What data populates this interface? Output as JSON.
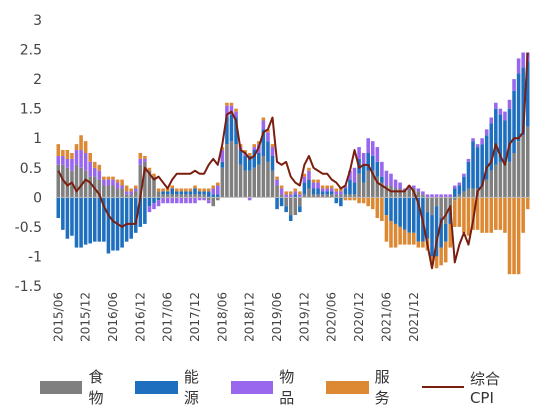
{
  "chart_data": {
    "type": "bar",
    "stacked": true,
    "ylim": [
      -1.5,
      3
    ],
    "yticks": [
      3,
      2.5,
      2,
      1.5,
      1,
      0.5,
      0,
      -0.5,
      -1,
      -1.5
    ],
    "xtick_labels": [
      "2015/06",
      "2015/12",
      "2016/06",
      "2016/12",
      "2017/06",
      "2017/12",
      "2018/06",
      "2018/12",
      "2019/06",
      "2019/12",
      "2020/06",
      "2020/12",
      "2021/06",
      "2021/12"
    ],
    "xtick_start_index": 0,
    "xtick_step": 6,
    "x_start": "2015/06",
    "x_frequency": "monthly",
    "series": [
      {
        "name": "食物",
        "color": "#7f7f7f",
        "values": [
          0.55,
          0.55,
          0.5,
          0.45,
          0.55,
          0.5,
          0.45,
          0.35,
          0.35,
          0.3,
          0.2,
          0.2,
          0.2,
          0.15,
          0.15,
          0.05,
          0.05,
          0.1,
          0.55,
          0.6,
          0.45,
          0.35,
          0.1,
          0.05,
          0.05,
          0.05,
          0.05,
          0.05,
          0.05,
          0.05,
          0.05,
          0.05,
          0.05,
          -0.05,
          -0.15,
          -0.05,
          0.5,
          0.9,
          0.95,
          0.9,
          0.55,
          0.45,
          0.45,
          0.5,
          0.55,
          0.7,
          0.6,
          0.45,
          0.2,
          0.05,
          -0.15,
          -0.3,
          -0.3,
          -0.15,
          0.05,
          0.15,
          0.05,
          0.05,
          0.05,
          0.05,
          0.05,
          0.05,
          0.05,
          0.05,
          0.05,
          0.05,
          0.4,
          0.25,
          0.45,
          0.45,
          0.35,
          0.25,
          0.2,
          0.2,
          0.15,
          0.15,
          0.1,
          0.15,
          0.15,
          0.1,
          0.05,
          -0.25,
          -0.3,
          -0.15,
          -0.35,
          -0.45,
          -0.25,
          -0.05,
          0.05,
          0.1,
          0.15,
          0.15,
          0.15,
          0.2,
          0.3,
          0.45,
          0.55,
          0.6,
          0.55,
          0.6,
          0.75,
          0.95,
          1.05,
          1.2
        ]
      },
      {
        "name": "能源",
        "color": "#1f6fbf",
        "values": [
          -0.35,
          -0.55,
          -0.7,
          -0.65,
          -0.85,
          -0.85,
          -0.8,
          -0.78,
          -0.75,
          -0.75,
          -0.75,
          -0.95,
          -0.9,
          -0.9,
          -0.85,
          -0.75,
          -0.7,
          -0.6,
          -0.5,
          -0.45,
          -0.15,
          -0.1,
          -0.05,
          0.05,
          0.05,
          0.1,
          0.05,
          0.05,
          0.05,
          0.05,
          0.1,
          0.05,
          0.05,
          0.1,
          0.05,
          0.05,
          0.1,
          0.45,
          0.45,
          0.45,
          0.25,
          0.25,
          0.25,
          0.3,
          0.2,
          0.45,
          0.35,
          0.25,
          -0.2,
          -0.15,
          -0.1,
          -0.1,
          0.05,
          -0.1,
          0.2,
          0.15,
          0.1,
          0.1,
          0.05,
          0.05,
          0.05,
          -0.1,
          -0.15,
          0.1,
          0.25,
          0.2,
          0.25,
          0.3,
          0.3,
          0.25,
          0.25,
          0.1,
          -0.3,
          -0.4,
          -0.45,
          -0.5,
          -0.55,
          -0.6,
          -0.6,
          -0.75,
          -0.75,
          -0.45,
          -0.7,
          -0.85,
          -0.5,
          -0.3,
          -0.2,
          0.15,
          0.15,
          0.25,
          0.45,
          0.8,
          0.7,
          0.7,
          0.75,
          0.8,
          0.95,
          0.8,
          0.75,
          0.9,
          1.05,
          1.15,
          1.15,
          1.1
        ]
      },
      {
        "name": "物品",
        "color": "#9966ee",
        "values": [
          0.15,
          0.15,
          0.15,
          0.2,
          0.25,
          0.3,
          0.3,
          0.25,
          0.15,
          0.15,
          0.1,
          0.1,
          0.1,
          0.1,
          0.05,
          0.05,
          0.05,
          0.05,
          0.1,
          0.05,
          -0.1,
          -0.1,
          -0.1,
          -0.1,
          -0.1,
          -0.1,
          -0.1,
          -0.1,
          -0.1,
          -0.1,
          -0.1,
          -0.05,
          -0.05,
          -0.05,
          0.1,
          0.15,
          0.2,
          0.2,
          0.15,
          0.1,
          0.05,
          0.05,
          -0.05,
          0.05,
          0.15,
          0.15,
          0.15,
          0.15,
          0.1,
          0.1,
          0.05,
          0.05,
          0.05,
          0.05,
          0.1,
          0.15,
          0.1,
          0.1,
          0.05,
          0.05,
          0.05,
          0.05,
          0.05,
          0.05,
          0.15,
          0.25,
          0.2,
          0.2,
          0.25,
          0.25,
          0.25,
          0.25,
          0.25,
          0.2,
          0.15,
          0.1,
          0.05,
          0.05,
          0.05,
          0.05,
          0.05,
          0.05,
          0.05,
          0.05,
          0.05,
          0.05,
          0.05,
          0.05,
          0.05,
          0.05,
          0.05,
          0.05,
          0.05,
          0.1,
          0.1,
          0.1,
          0.1,
          0.1,
          0.15,
          0.15,
          0.2,
          0.25,
          0.25,
          0.15
        ]
      },
      {
        "name": "服务",
        "color": "#dd8833",
        "values": [
          0.2,
          0.1,
          0.15,
          0.1,
          0.1,
          0.25,
          0.2,
          0.15,
          0.1,
          0.1,
          0.05,
          0.05,
          0.05,
          0.05,
          0.1,
          0.1,
          0.05,
          0.05,
          0.1,
          0.05,
          0.05,
          0.05,
          0.05,
          0.05,
          0.05,
          0.05,
          0.05,
          0.05,
          0.05,
          0.05,
          0.05,
          0.05,
          0.05,
          0.05,
          0.05,
          0.05,
          0.05,
          0.05,
          0.05,
          0.05,
          0.05,
          0.05,
          0.05,
          0.05,
          0.05,
          0.05,
          0.05,
          0.05,
          0.05,
          0.05,
          0.05,
          0.05,
          0.05,
          0.05,
          0.05,
          0.05,
          0.05,
          0.05,
          0.05,
          0.05,
          0.05,
          0.05,
          0.05,
          -0.05,
          -0.05,
          -0.05,
          -0.1,
          -0.1,
          -0.15,
          -0.2,
          -0.35,
          -0.4,
          -0.45,
          -0.45,
          -0.4,
          -0.3,
          -0.25,
          -0.2,
          -0.2,
          -0.1,
          -0.1,
          -0.2,
          -0.15,
          -0.2,
          -0.3,
          -0.35,
          -0.4,
          -0.45,
          -0.5,
          -0.6,
          -0.65,
          -0.55,
          -0.55,
          -0.6,
          -0.6,
          -0.6,
          -0.55,
          -0.55,
          -0.6,
          -1.3,
          -1.3,
          -1.3,
          -0.6,
          -0.2
        ]
      }
    ],
    "line_series": {
      "name": "综合CPI",
      "color": "#7a1f10",
      "values": [
        0.45,
        0.3,
        0.2,
        0.25,
        0.1,
        0.2,
        0.3,
        0.25,
        0.15,
        0.05,
        -0.15,
        -0.3,
        -0.4,
        -0.45,
        -0.5,
        -0.45,
        -0.45,
        -0.45,
        0.0,
        0.5,
        0.4,
        0.3,
        0.35,
        0.25,
        0.15,
        0.3,
        0.4,
        0.4,
        0.4,
        0.4,
        0.45,
        0.4,
        0.4,
        0.55,
        0.65,
        0.55,
        0.9,
        1.4,
        1.45,
        1.3,
        0.8,
        0.75,
        0.65,
        0.7,
        0.85,
        1.1,
        1.15,
        1.35,
        0.6,
        0.55,
        0.6,
        0.35,
        0.25,
        0.2,
        0.55,
        0.7,
        0.5,
        0.45,
        0.4,
        0.4,
        0.3,
        0.25,
        0.15,
        0.2,
        0.45,
        0.8,
        0.5,
        0.55,
        0.55,
        0.4,
        0.25,
        0.2,
        0.15,
        0.1,
        0.1,
        0.1,
        0.1,
        0.2,
        0.1,
        -0.1,
        -0.4,
        -0.8,
        -1.2,
        -0.75,
        -0.4,
        -0.3,
        -0.15,
        -1.1,
        -0.8,
        -0.6,
        -0.8,
        -0.4,
        0.1,
        0.2,
        0.5,
        0.6,
        0.9,
        0.7,
        0.55,
        0.9,
        1.0,
        1.0,
        1.1,
        2.45
      ]
    }
  },
  "legend": [
    {
      "label": "食物",
      "type": "box",
      "color": "#7f7f7f"
    },
    {
      "label": "能源",
      "type": "box",
      "color": "#1f6fbf"
    },
    {
      "label": "物品",
      "type": "box",
      "color": "#9966ee"
    },
    {
      "label": "服务",
      "type": "box",
      "color": "#dd8833"
    },
    {
      "label": "综合CPI",
      "type": "line",
      "color": "#7a1f10"
    }
  ]
}
